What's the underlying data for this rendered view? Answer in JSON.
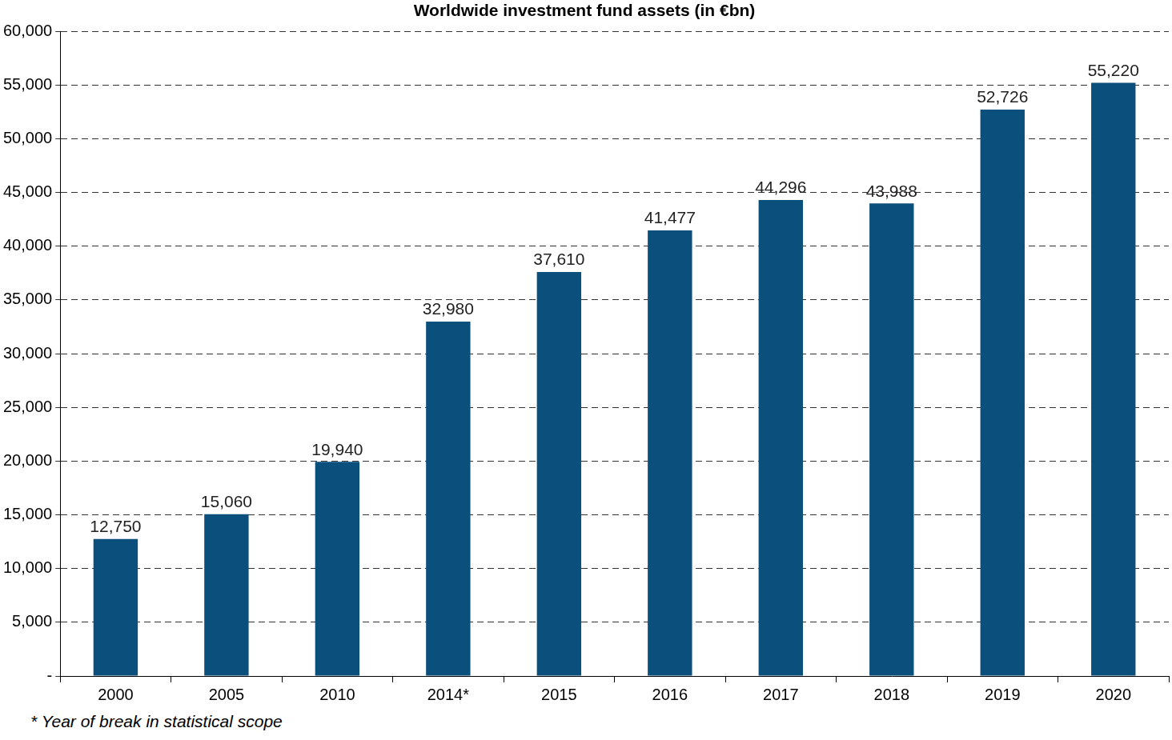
{
  "chart_data": {
    "type": "bar",
    "title": "Worldwide investment fund assets (in €bn)",
    "categories": [
      "2000",
      "2005",
      "2010",
      "2014*",
      "2015",
      "2016",
      "2017",
      "2018",
      "2019",
      "2020"
    ],
    "values": [
      12750,
      15060,
      19940,
      32980,
      37610,
      41477,
      44296,
      43988,
      52726,
      55220
    ],
    "value_labels": [
      "12,750",
      "15,060",
      "19,940",
      "32,980",
      "37,610",
      "41,477",
      "44,296",
      "43,988",
      "52,726",
      "55,220"
    ],
    "data_labels": true,
    "color": "#0b4f7c",
    "ylim": [
      0,
      60000
    ],
    "yticks": [
      {
        "value": 0,
        "label": "-"
      },
      {
        "value": 5000,
        "label": "5,000"
      },
      {
        "value": 10000,
        "label": "10,000"
      },
      {
        "value": 15000,
        "label": "15,000"
      },
      {
        "value": 20000,
        "label": "20,000"
      },
      {
        "value": 25000,
        "label": "25,000"
      },
      {
        "value": 30000,
        "label": "30,000"
      },
      {
        "value": 35000,
        "label": "35,000"
      },
      {
        "value": 40000,
        "label": "40,000"
      },
      {
        "value": 45000,
        "label": "45,000"
      },
      {
        "value": 50000,
        "label": "50,000"
      },
      {
        "value": 55000,
        "label": "55,000"
      },
      {
        "value": 60000,
        "label": "60,000"
      }
    ],
    "grid": true,
    "annotations": [
      "* Year of break in statistical scope"
    ]
  }
}
